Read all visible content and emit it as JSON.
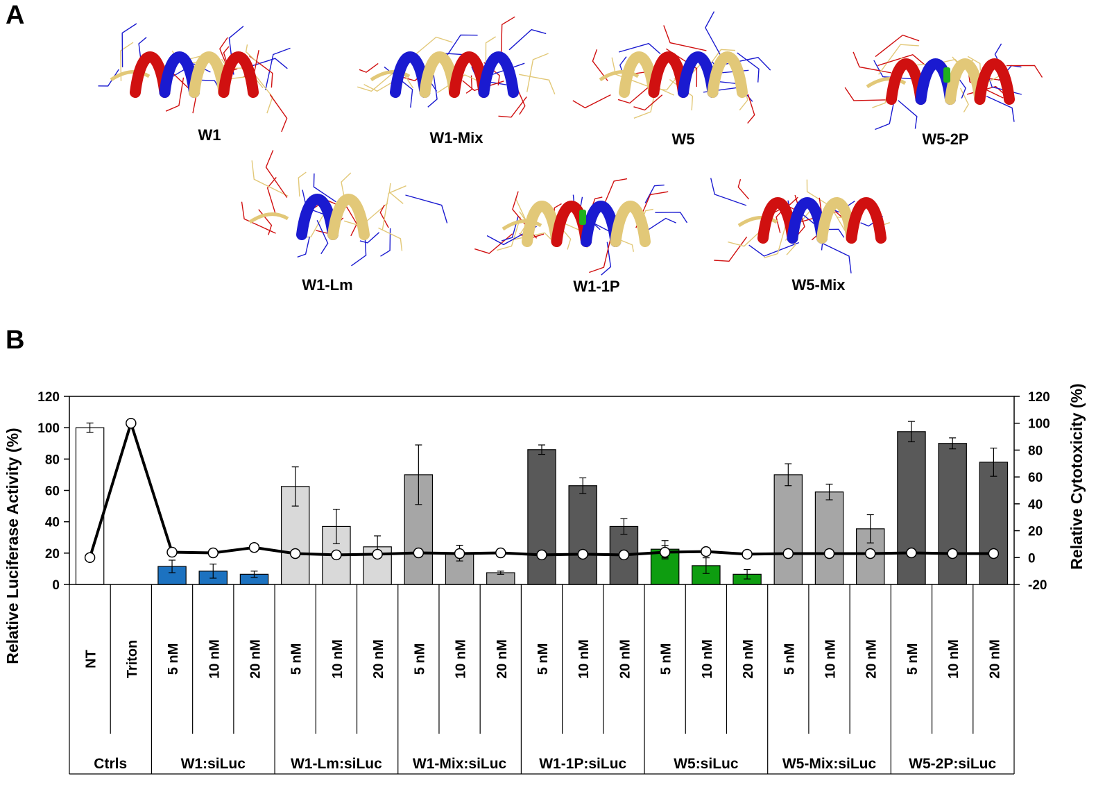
{
  "panels": {
    "a": "A",
    "b": "B"
  },
  "structures": [
    {
      "name": "W1",
      "helix": "ribbon"
    },
    {
      "name": "W1-Mix",
      "helix": "ribbon"
    },
    {
      "name": "W5",
      "helix": "ribbon"
    },
    {
      "name": "W5-2P",
      "helix": "kinked"
    },
    {
      "name": "W1-Lm",
      "helix": "short"
    },
    {
      "name": "W1-1P",
      "helix": "kinked"
    },
    {
      "name": "W5-Mix",
      "helix": "ribbon"
    }
  ],
  "structure_colors": {
    "helix_tan": "#e2c878",
    "cationic_blue": "#1a1ad0",
    "aromatic_red": "#d01010",
    "proline_green": "#1fb01f"
  },
  "chart_data": {
    "type": "bar",
    "title": "",
    "ylabel": "Relative Luciferase Activity (%)",
    "y2label": "Relative Cytotoxicity (%)",
    "ylim": [
      0,
      120
    ],
    "yticks": [
      "0",
      "20",
      "40",
      "60",
      "80",
      "100",
      "120"
    ],
    "y2lim": [
      -20,
      120
    ],
    "y2ticks": [
      "-20",
      "0",
      "20",
      "40",
      "60",
      "80",
      "100",
      "120"
    ],
    "grid": false,
    "categories": [
      "NT",
      "Triton",
      "5 nM",
      "10 nM",
      "20 nM",
      "5 nM",
      "10 nM",
      "20 nM",
      "5 nM",
      "10 nM",
      "20 nM",
      "5 nM",
      "10 nM",
      "20 nM",
      "5 nM",
      "10 nM",
      "20 nM",
      "5 nM",
      "10 nM",
      "20 nM",
      "5 nM",
      "10 nM",
      "20 nM"
    ],
    "groups": [
      {
        "label": "Ctrls",
        "count": 2
      },
      {
        "label": "W1:siLuc",
        "count": 3
      },
      {
        "label": "W1-Lm:siLuc",
        "count": 3
      },
      {
        "label": "W1-Mix:siLuc",
        "count": 3
      },
      {
        "label": "W1-1P:siLuc",
        "count": 3
      },
      {
        "label": "W5:siLuc",
        "count": 3
      },
      {
        "label": "W5-Mix:siLuc",
        "count": 3
      },
      {
        "label": "W5-2P:siLuc",
        "count": 3
      }
    ],
    "series": [
      {
        "name": "Relative Luciferase Activity",
        "kind": "bar",
        "axis": "left",
        "values": [
          100,
          null,
          11.5,
          8.5,
          6.5,
          62.5,
          37,
          24,
          70,
          20,
          7.5,
          86,
          63,
          37,
          22.5,
          12,
          6.5,
          70,
          59,
          35.5,
          97.5,
          90,
          78
        ],
        "errors": [
          3,
          null,
          4,
          4.5,
          2,
          12.5,
          11,
          7,
          19,
          5,
          1,
          3,
          5,
          5,
          5.5,
          5,
          3,
          7,
          5,
          9,
          6.5,
          3.5,
          9
        ],
        "colors": [
          "#ffffff",
          "#ffffff",
          "#1c72c0",
          "#1c72c0",
          "#1c72c0",
          "#d9d9d9",
          "#d9d9d9",
          "#d9d9d9",
          "#a6a6a6",
          "#a6a6a6",
          "#a6a6a6",
          "#595959",
          "#595959",
          "#595959",
          "#0e9d10",
          "#0e9d10",
          "#0e9d10",
          "#a6a6a6",
          "#a6a6a6",
          "#a6a6a6",
          "#595959",
          "#595959",
          "#595959"
        ]
      },
      {
        "name": "Relative Cytotoxicity",
        "kind": "line",
        "axis": "right",
        "values": [
          0,
          100,
          4,
          3.5,
          7.5,
          3,
          2,
          2.5,
          3.5,
          3,
          3.5,
          2,
          2.5,
          2,
          4,
          4.5,
          2.5,
          3,
          3,
          3,
          3.5,
          3,
          3
        ],
        "errors": [
          0,
          1.5,
          0,
          0,
          0,
          0,
          0,
          0,
          0,
          0,
          1,
          0,
          0,
          0,
          5,
          0,
          0,
          0,
          0,
          0,
          0,
          0,
          0
        ]
      }
    ]
  }
}
